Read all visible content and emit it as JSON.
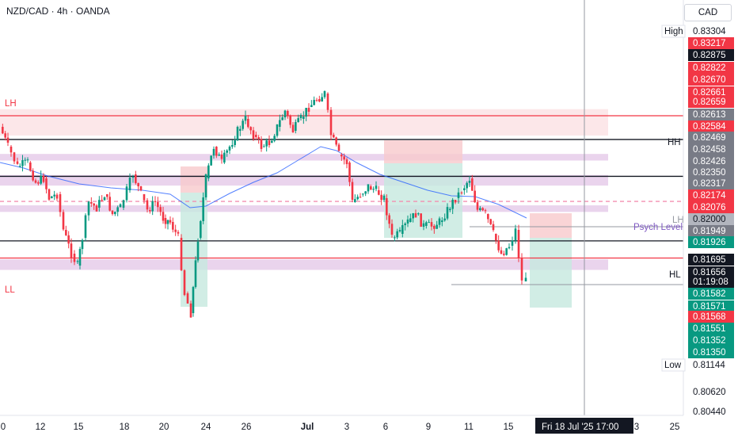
{
  "header": {
    "title": "NZD/CAD · 4h · OANDA",
    "currency": "CAD"
  },
  "chart_data": {
    "type": "candlestick",
    "symbol": "NZD/CAD",
    "timeframe": "4h",
    "source": "OANDA",
    "ylim": [
      0.804,
      0.8342
    ],
    "x_ticks": [
      "0",
      "12",
      "15",
      "18",
      "20",
      "24",
      "26",
      "Jul",
      "3",
      "6",
      "9",
      "11",
      "15",
      "3",
      "25"
    ],
    "crosshair_time": "Fri 18 Jul '25   17:00",
    "price_labels": [
      {
        "text": "High",
        "value": "0.83304",
        "style": "outline"
      },
      {
        "text": "",
        "value": "0.83217",
        "style": "red"
      },
      {
        "text": "",
        "value": "0.82875",
        "style": "black"
      },
      {
        "text": "",
        "value": "0.82822",
        "style": "red"
      },
      {
        "text": "",
        "value": "0.82670",
        "style": "red"
      },
      {
        "text": "",
        "value": "0.82661",
        "style": "red"
      },
      {
        "text": "",
        "value": "0.82659",
        "style": "red"
      },
      {
        "text": "",
        "value": "0.82613",
        "style": "grey"
      },
      {
        "text": "",
        "value": "0.82584",
        "style": "red"
      },
      {
        "text": "",
        "value": "0.82469",
        "style": "grey"
      },
      {
        "text": "",
        "value": "0.82458",
        "style": "grey"
      },
      {
        "text": "",
        "value": "0.82426",
        "style": "grey"
      },
      {
        "text": "",
        "value": "0.82350",
        "style": "grey"
      },
      {
        "text": "",
        "value": "0.82317",
        "style": "grey"
      },
      {
        "text": "",
        "value": "0.82174",
        "style": "red"
      },
      {
        "text": "",
        "value": "0.82076",
        "style": "red"
      },
      {
        "text": "",
        "value": "0.82000",
        "style": "lightgrey"
      },
      {
        "text": "",
        "value": "0.81949",
        "style": "grey"
      },
      {
        "text": "",
        "value": "0.81926",
        "style": "green"
      },
      {
        "text": "",
        "value": "0.81695",
        "style": "black"
      },
      {
        "text": "",
        "value": "0.81656",
        "style": "black"
      },
      {
        "text": "",
        "value": "01:19:08",
        "style": "black"
      },
      {
        "text": "",
        "value": "0.81582",
        "style": "green"
      },
      {
        "text": "",
        "value": "0.81571",
        "style": "green"
      },
      {
        "text": "",
        "value": "0.81568",
        "style": "red"
      },
      {
        "text": "",
        "value": "0.81551",
        "style": "green"
      },
      {
        "text": "",
        "value": "0.81352",
        "style": "green"
      },
      {
        "text": "",
        "value": "0.81350",
        "style": "green"
      },
      {
        "text": "Low",
        "value": "0.81144",
        "style": "outline"
      },
      {
        "text": "",
        "value": "0.80620",
        "style": "plain"
      },
      {
        "text": "",
        "value": "0.80440",
        "style": "plain"
      }
    ],
    "annotations": [
      {
        "text": "LH",
        "color": "#f23645"
      },
      {
        "text": "LL",
        "color": "#f23645"
      },
      {
        "text": "HH",
        "color": "#131722"
      },
      {
        "text": "HL",
        "color": "#131722"
      },
      {
        "text": "LH",
        "color": "#9598a1"
      },
      {
        "text": "Psych Level",
        "color": "#7e57c2"
      }
    ],
    "horizontal_levels": [
      {
        "price": 0.8265,
        "color": "#f23645",
        "role": "LH"
      },
      {
        "price": 0.8247,
        "color": "#131722",
        "role": "HH"
      },
      {
        "price": 0.8219,
        "color": "#131722",
        "role": "resistance"
      },
      {
        "price": 0.82,
        "color": "#f48fb1",
        "role": "Psych Level"
      },
      {
        "price": 0.817,
        "color": "#131722",
        "role": "HL"
      },
      {
        "price": 0.8157,
        "color": "#f23645",
        "role": "LL"
      }
    ],
    "zones": [
      {
        "top": 0.827,
        "bottom": 0.825,
        "color": "#fbe3e5"
      },
      {
        "top": 0.8236,
        "bottom": 0.8231,
        "color": "#e6cdea"
      },
      {
        "top": 0.822,
        "bottom": 0.8212,
        "color": "#e6cdea"
      },
      {
        "top": 0.8197,
        "bottom": 0.8192,
        "color": "#e6cdea"
      },
      {
        "top": 0.8156,
        "bottom": 0.8148,
        "color": "#e6cdea"
      }
    ]
  }
}
